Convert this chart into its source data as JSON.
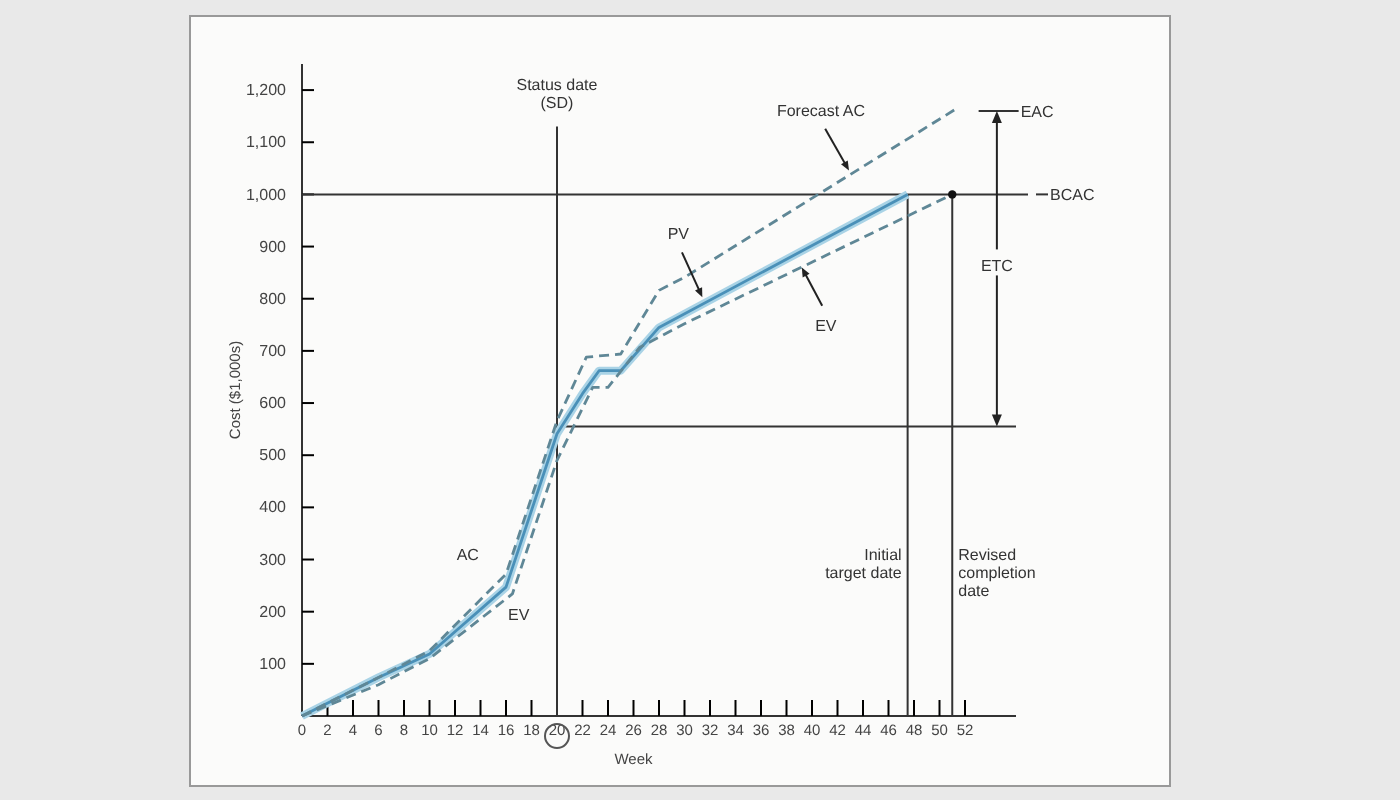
{
  "chart_data": {
    "type": "line",
    "xlabel": "Week",
    "ylabel": "Cost ($1,000s)",
    "xlim": [
      0,
      56
    ],
    "ylim": [
      0,
      1250
    ],
    "xticks": [
      0,
      2,
      4,
      6,
      8,
      10,
      12,
      14,
      16,
      18,
      20,
      22,
      24,
      26,
      28,
      30,
      32,
      34,
      36,
      38,
      40,
      42,
      44,
      46,
      48,
      50,
      52
    ],
    "yticks": [
      100,
      200,
      300,
      400,
      500,
      600,
      700,
      800,
      900,
      {
        "value": 1000,
        "label": "1,000"
      },
      {
        "value": 1100,
        "label": "1,100"
      },
      {
        "value": 1200,
        "label": "1,200"
      }
    ],
    "grid": false,
    "marker": "none",
    "series": [
      {
        "color": "#4a90b8",
        "line_style": "solid",
        "x": [
          0,
          6,
          10,
          16,
          20,
          22,
          23.3,
          25,
          28,
          47.5
        ],
        "values": [
          0,
          74,
          119,
          247,
          541,
          618,
          662,
          662,
          745,
          1000
        ]
      },
      {
        "type": "line",
        "color": "#5f8796",
        "line_style": "dashed",
        "x": [
          0,
          6,
          10,
          16,
          20,
          22.3,
          25,
          28,
          30,
          51.5
        ],
        "values": [
          0,
          74,
          125,
          272,
          566,
          688,
          694,
          816,
          841,
          1167
        ]
      },
      {
        "type": "line",
        "color": "#5f8796",
        "line_style": "dashed",
        "x": [
          0,
          6,
          10,
          16.5,
          20,
          22.8,
          24,
          26.5,
          30,
          51
        ],
        "values": [
          0,
          60,
          110,
          234,
          490,
          630,
          630,
          707,
          752,
          1000
        ]
      },
      {
        "type": "scatter",
        "marker": "circle",
        "color": "#111111",
        "x": [
          51
        ],
        "values": [
          1000
        ]
      }
    ],
    "ref_lines": [
      {
        "axis": "x",
        "value": 20,
        "label": "Status date (SD)",
        "color": "#333333"
      },
      {
        "axis": "x",
        "value": 47.5,
        "label": "Initial target date",
        "color": "#333333"
      },
      {
        "axis": "x",
        "value": 51,
        "label": "Revised completion date",
        "color": "#333333"
      },
      {
        "axis": "y",
        "value": 1000,
        "label": "BCAC",
        "color": "#333333"
      },
      {
        "axis": "y",
        "value": 555,
        "color": "#333333"
      }
    ],
    "annotations": [
      "AC",
      "EV",
      {
        "text": "PV",
        "x": 31.4,
        "y": 803
      },
      {
        "text": "EV",
        "x": 39.2,
        "y": 860
      },
      {
        "text": "Forecast AC",
        "x": 42.9,
        "y": 1046
      },
      "EAC",
      {
        "text": "ETC",
        "x": 54.5,
        "y": 555
      }
    ]
  }
}
